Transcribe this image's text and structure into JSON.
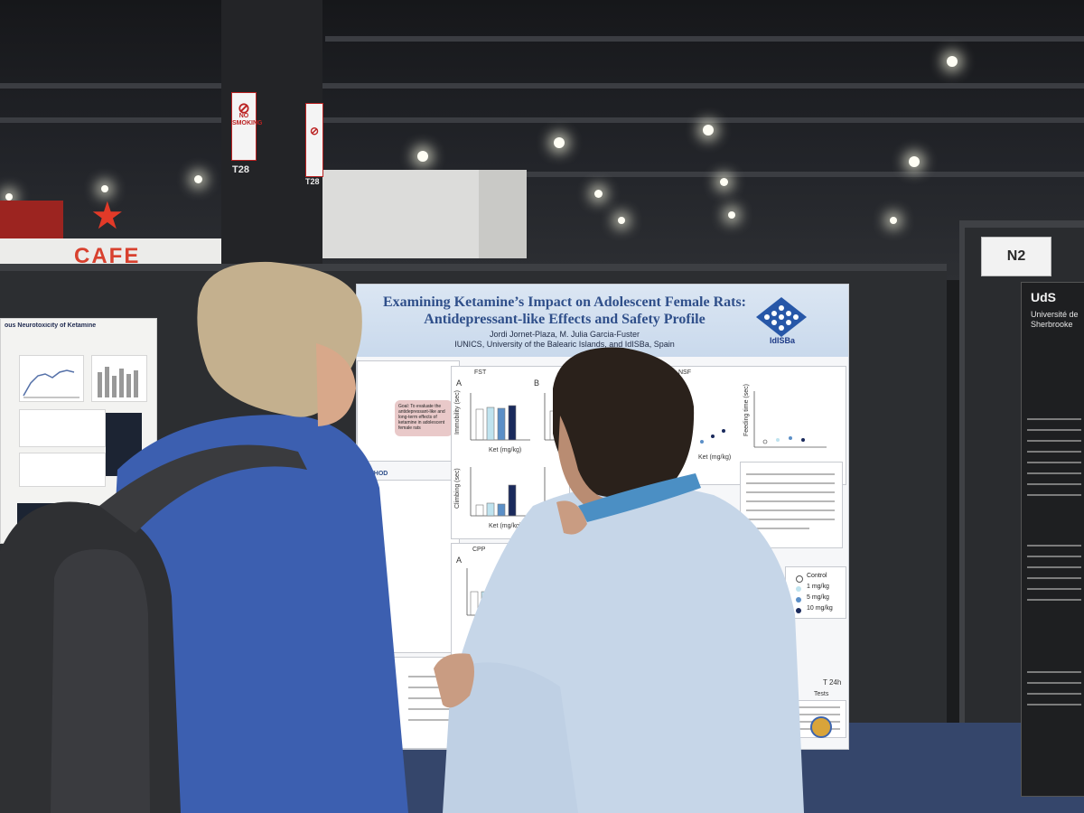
{
  "scene": {
    "cafe_sign": "CAFE",
    "pillar_tag_left": "T28",
    "pillar_tag_right": "T28",
    "no_smoking_sign": "NO SMOKING",
    "booth_label": "N2"
  },
  "main_poster": {
    "title": "Examining Ketamine’s Impact on Adolescent Female Rats: Antidepressant-like Effects and Safety Profile",
    "authors": "Jordi Jornet-Plaza, M. Julia Garcia-Fuster",
    "affiliation": "IUNICS, University of the Balearic Islands, and IdISBa, Spain",
    "logo_text": "IdISBa",
    "section_labels": [
      "FST",
      "NSF",
      "CPP"
    ],
    "panel_letters": [
      "A",
      "B",
      "A",
      "B"
    ],
    "axis_labels": [
      "Immobility (sec)",
      "Climbing (sec)",
      "Feeding time (sec)",
      "Ket (mg/kg)"
    ],
    "legend": [
      {
        "label": "Control",
        "color": "#ffffff"
      },
      {
        "label": "1 mg/kg",
        "color": "#bfe3ef"
      },
      {
        "label": "5 mg/kg",
        "color": "#5b8fc7"
      },
      {
        "label": "10 mg/kg",
        "color": "#1a2a5c"
      }
    ],
    "goal_text": "Goal: To evaluate the antidepressant-like and long-term effects of ketamine in adolescent female rats",
    "method_label": "METHOD",
    "tests_label": "Tests",
    "t24h_label": "T 24h"
  },
  "left_poster": {
    "title": "ous Neurotoxicity of Ketamine"
  },
  "right_poster": {
    "header": "UdS",
    "subheader": "Université de Sherbrooke"
  }
}
